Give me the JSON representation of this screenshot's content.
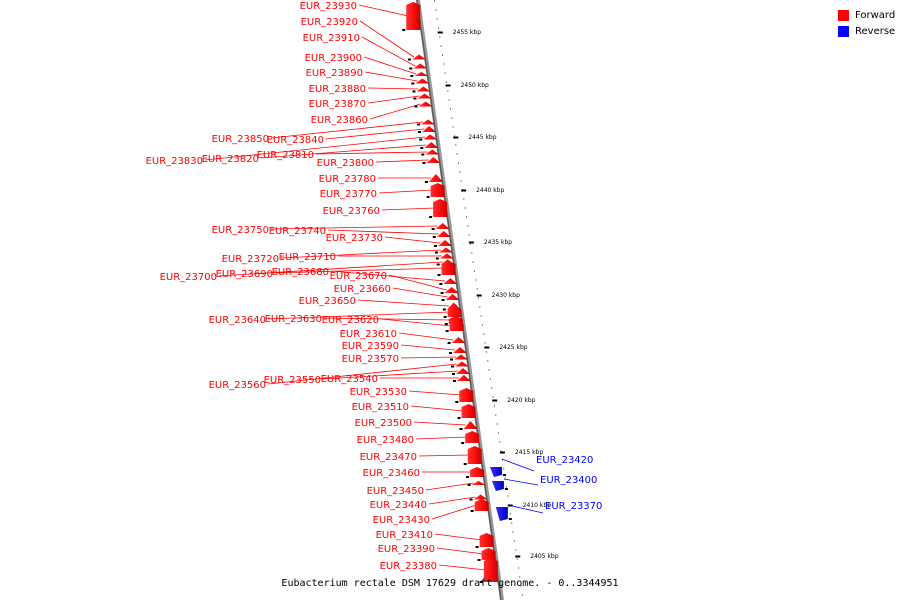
{
  "legend": {
    "forward_label": "Forward",
    "reverse_label": "Reverse",
    "forward_color": "#ff0000",
    "reverse_color": "#0000ff"
  },
  "caption": "Eubacterium rectale DSM 17629 draft genome. - 0..3344951",
  "scale": {
    "unit": "kbp",
    "ticks": [
      2455,
      2450,
      2445,
      2440,
      2435,
      2430,
      2425,
      2420,
      2415,
      2410,
      2405
    ]
  },
  "features": [
    {
      "label": "EUR_23930",
      "strand": "forward"
    },
    {
      "label": "EUR_23920",
      "strand": "forward"
    },
    {
      "label": "EUR_23910",
      "strand": "forward"
    },
    {
      "label": "EUR_23900",
      "strand": "forward"
    },
    {
      "label": "EUR_23890",
      "strand": "forward"
    },
    {
      "label": "EUR_23880",
      "strand": "forward"
    },
    {
      "label": "EUR_23870",
      "strand": "forward"
    },
    {
      "label": "EUR_23860",
      "strand": "forward"
    },
    {
      "label": "EUR_23850",
      "strand": "forward"
    },
    {
      "label": "EUR_23840",
      "strand": "forward"
    },
    {
      "label": "EUR_23830",
      "strand": "forward"
    },
    {
      "label": "EUR_23820",
      "strand": "forward"
    },
    {
      "label": "EUR_23810",
      "strand": "forward"
    },
    {
      "label": "EUR_23800",
      "strand": "forward"
    },
    {
      "label": "EUR_23780",
      "strand": "forward"
    },
    {
      "label": "EUR_23770",
      "strand": "forward"
    },
    {
      "label": "EUR_23760",
      "strand": "forward"
    },
    {
      "label": "EUR_23750",
      "strand": "forward"
    },
    {
      "label": "EUR_23740",
      "strand": "forward"
    },
    {
      "label": "EUR_23730",
      "strand": "forward"
    },
    {
      "label": "EUR_23720",
      "strand": "forward"
    },
    {
      "label": "EUR_23710",
      "strand": "forward"
    },
    {
      "label": "EUR_23700",
      "strand": "forward"
    },
    {
      "label": "EUR_23690",
      "strand": "forward"
    },
    {
      "label": "EUR_23680",
      "strand": "forward"
    },
    {
      "label": "EUR_23670",
      "strand": "forward"
    },
    {
      "label": "EUR_23660",
      "strand": "forward"
    },
    {
      "label": "EUR_23650",
      "strand": "forward"
    },
    {
      "label": "EUR_23640",
      "strand": "forward"
    },
    {
      "label": "EUR_23630",
      "strand": "forward"
    },
    {
      "label": "EUR_23620",
      "strand": "forward"
    },
    {
      "label": "EUR_23610",
      "strand": "forward"
    },
    {
      "label": "EUR_23590",
      "strand": "forward"
    },
    {
      "label": "EUR_23570",
      "strand": "forward"
    },
    {
      "label": "EUR_23560",
      "strand": "forward"
    },
    {
      "label": "EUR_23550",
      "strand": "forward"
    },
    {
      "label": "EUR_23540",
      "strand": "forward"
    },
    {
      "label": "EUR_23530",
      "strand": "forward"
    },
    {
      "label": "EUR_23510",
      "strand": "forward"
    },
    {
      "label": "EUR_23500",
      "strand": "forward"
    },
    {
      "label": "EUR_23480",
      "strand": "forward"
    },
    {
      "label": "EUR_23470",
      "strand": "forward"
    },
    {
      "label": "EUR_23460",
      "strand": "forward"
    },
    {
      "label": "EUR_23450",
      "strand": "forward"
    },
    {
      "label": "EUR_23440",
      "strand": "forward"
    },
    {
      "label": "EUR_23430",
      "strand": "forward"
    },
    {
      "label": "EUR_23410",
      "strand": "forward"
    },
    {
      "label": "EUR_23390",
      "strand": "forward"
    },
    {
      "label": "EUR_23380",
      "strand": "forward"
    },
    {
      "label": "EUR_23420",
      "strand": "reverse"
    },
    {
      "label": "EUR_23400",
      "strand": "reverse"
    },
    {
      "label": "EUR_23370",
      "strand": "reverse"
    }
  ]
}
